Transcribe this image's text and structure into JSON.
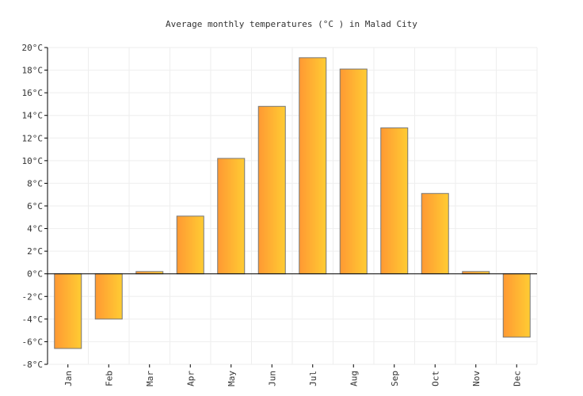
{
  "chart_data": {
    "type": "bar",
    "title": "Average monthly temperatures (°C ) in Malad City",
    "xlabel": "",
    "ylabel": "",
    "categories": [
      "Jan",
      "Feb",
      "Mar",
      "Apr",
      "May",
      "Jun",
      "Jul",
      "Aug",
      "Sep",
      "Oct",
      "Nov",
      "Dec"
    ],
    "values": [
      -6.6,
      -4.0,
      0.2,
      5.1,
      10.2,
      14.8,
      19.1,
      18.1,
      12.9,
      7.1,
      0.2,
      -5.6
    ],
    "ylim": [
      -8,
      20
    ],
    "yticks": [
      -8,
      -6,
      -4,
      -2,
      0,
      2,
      4,
      6,
      8,
      10,
      12,
      14,
      16,
      18,
      20
    ],
    "ytick_suffix": "°C",
    "grid": true,
    "colors": {
      "bar_left": "#ff9933",
      "bar_right": "#ffcc33",
      "bar_stroke": "#777777",
      "grid": "#eeeeee"
    }
  }
}
